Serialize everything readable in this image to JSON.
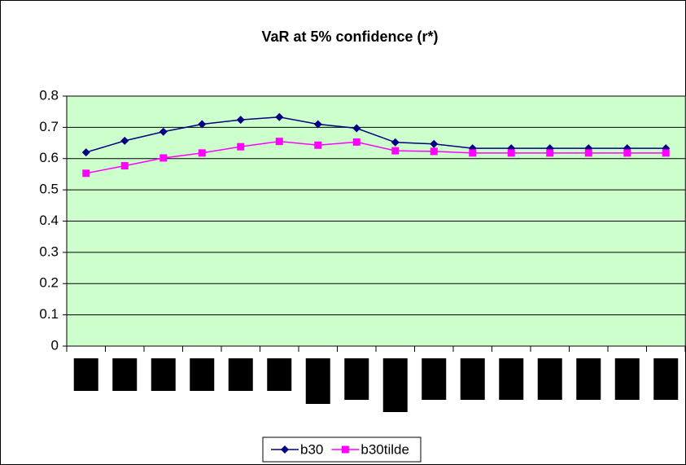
{
  "chart_data": {
    "type": "line",
    "title": "VaR at 5% confidence (r*)",
    "categories": [
      null,
      null,
      null,
      null,
      null,
      null,
      null,
      null,
      null,
      null,
      null,
      null,
      null,
      null,
      null,
      null
    ],
    "series": [
      {
        "name": "b30",
        "color": "#000080",
        "marker": "diamond",
        "values": [
          0.62,
          0.657,
          0.686,
          0.71,
          0.724,
          0.733,
          0.71,
          0.697,
          0.652,
          0.647,
          0.633,
          0.633,
          0.633,
          0.633,
          0.633,
          0.633
        ]
      },
      {
        "name": "b30tilde",
        "color": "#ff00ff",
        "marker": "square",
        "values": [
          0.553,
          0.577,
          0.602,
          0.618,
          0.638,
          0.655,
          0.643,
          0.653,
          0.625,
          0.623,
          0.618,
          0.618,
          0.618,
          0.618,
          0.618,
          0.618
        ]
      }
    ],
    "ylim": [
      0,
      0.8
    ],
    "yticks": [
      0,
      0.1,
      0.2,
      0.3,
      0.4,
      0.5,
      0.6,
      0.7,
      0.8
    ],
    "grid": true,
    "legend": "bottom",
    "plot_background": "#ccffcc"
  }
}
